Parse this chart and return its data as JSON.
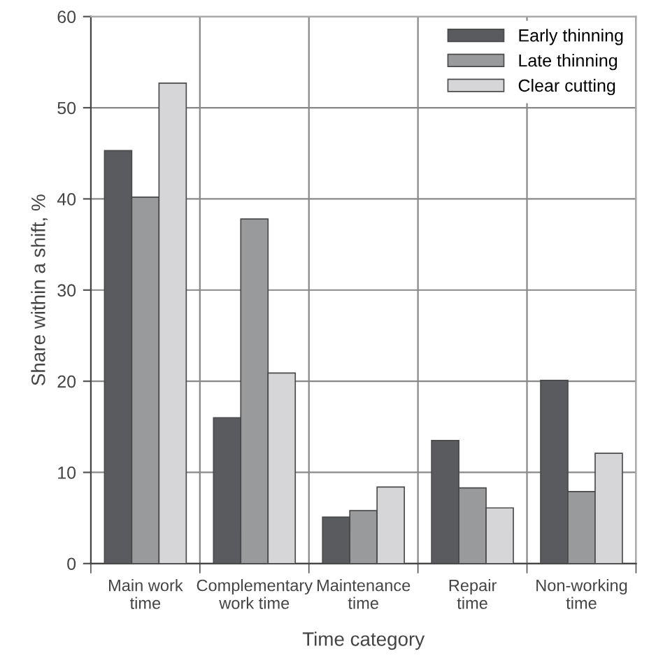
{
  "chart_data": {
    "type": "bar",
    "xlabel": "Time category",
    "ylabel": "Share within a shift, %",
    "categories": [
      "Main work\ntime",
      "Complementary\nwork time",
      "Maintenance\ntime",
      "Repair\ntime",
      "Non-working\ntime"
    ],
    "series": [
      {
        "name": "Early thinning",
        "color": "#5a5b5f",
        "values": [
          45.3,
          16.0,
          5.1,
          13.5,
          20.1
        ]
      },
      {
        "name": "Late thinning",
        "color": "#999a9c",
        "values": [
          40.2,
          37.8,
          5.8,
          8.3,
          7.9
        ]
      },
      {
        "name": "Clear cutting",
        "color": "#d6d6d8",
        "values": [
          52.7,
          20.9,
          8.4,
          6.1,
          12.1
        ]
      }
    ],
    "ylim": [
      0,
      60
    ],
    "yticks": [
      0,
      10,
      20,
      30,
      40,
      50,
      60
    ],
    "grid": true,
    "legend": "top right"
  }
}
